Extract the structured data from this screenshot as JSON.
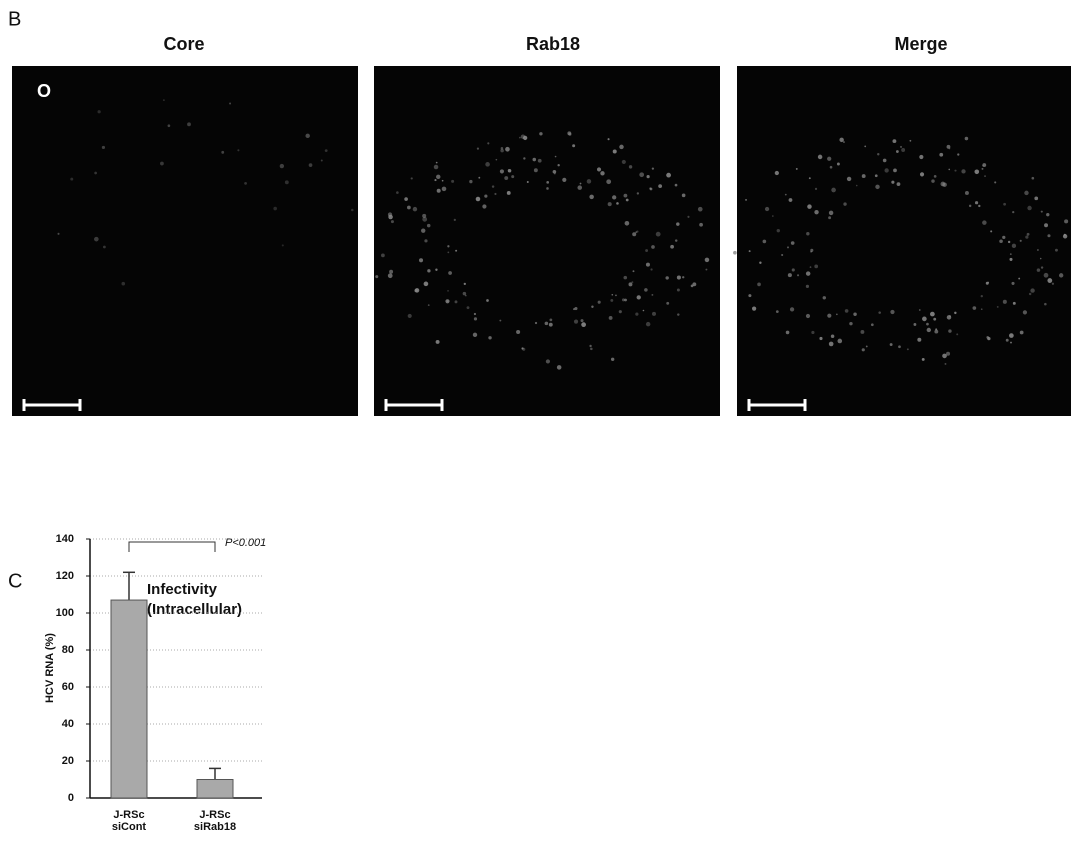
{
  "panel_b": {
    "label": "B",
    "inset_label": "O",
    "images": [
      {
        "title": "Core"
      },
      {
        "title": "Rab18"
      },
      {
        "title": "Merge"
      }
    ]
  },
  "chart_data": {
    "type": "bar",
    "panel_label": "C",
    "title": [
      "Infectivity",
      "(Intracellular)"
    ],
    "y_label": "HCV RNA (%)",
    "categories": [
      [
        "J-RSc",
        "siCont"
      ],
      [
        "J-RSc",
        "siRab18"
      ]
    ],
    "values": [
      107,
      10
    ],
    "errors": [
      15,
      6
    ],
    "color": "#a9a9a9",
    "ylim": [
      0,
      140
    ],
    "yticks": [
      0,
      20,
      40,
      60,
      80,
      100,
      120,
      140
    ],
    "grid": true,
    "annotation": "P<0.001"
  }
}
